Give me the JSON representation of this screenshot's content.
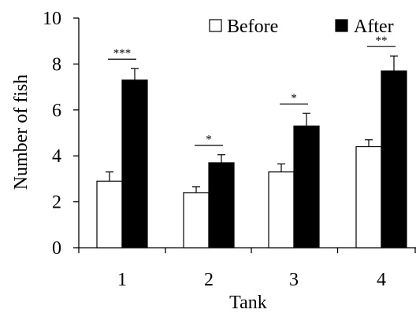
{
  "chart_data": {
    "type": "bar",
    "title": "",
    "xlabel": "Tank",
    "ylabel": "Number of fish",
    "categories": [
      "1",
      "2",
      "3",
      "4"
    ],
    "ylim": [
      0,
      10
    ],
    "yticks": [
      "0",
      "2",
      "4",
      "6",
      "8",
      "10"
    ],
    "series": [
      {
        "name": "Before",
        "color": "#ffffff",
        "values": [
          2.9,
          2.4,
          3.3,
          4.4
        ],
        "errors": [
          0.4,
          0.25,
          0.35,
          0.3
        ]
      },
      {
        "name": "After",
        "color": "#000000",
        "values": [
          7.3,
          3.7,
          5.3,
          7.7
        ],
        "errors": [
          0.5,
          0.35,
          0.55,
          0.65
        ]
      }
    ],
    "significance": [
      "***",
      "*",
      "*",
      "**"
    ],
    "legend_position": "top-right",
    "grid": false
  }
}
